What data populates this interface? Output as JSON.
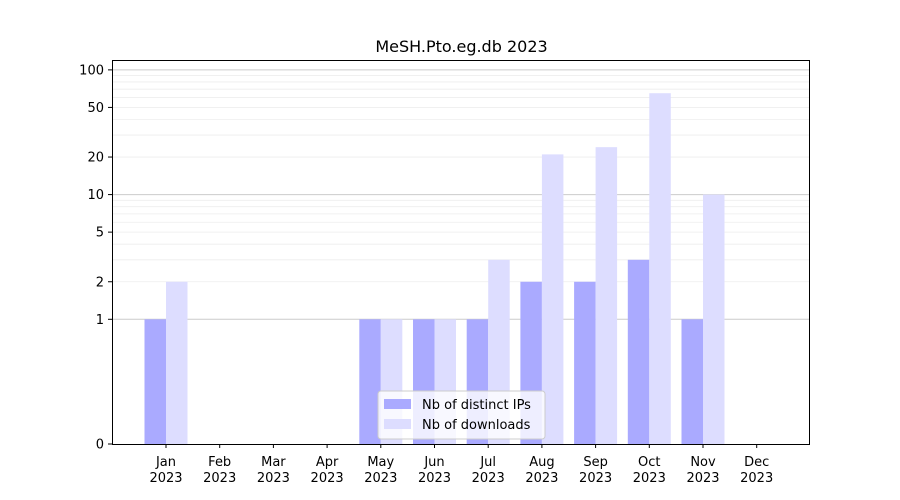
{
  "chart_data": {
    "type": "bar",
    "title": "MeSH.Pto.eg.db 2023",
    "xlabel": "",
    "ylabel": "",
    "y_scale": "symlog",
    "ylim": [
      0,
      120
    ],
    "y_ticks": [
      0,
      1,
      2,
      5,
      10,
      20,
      50,
      100
    ],
    "grid": true,
    "legend_position": "lower-center",
    "categories": [
      [
        "Jan",
        "2023"
      ],
      [
        "Feb",
        "2023"
      ],
      [
        "Mar",
        "2023"
      ],
      [
        "Apr",
        "2023"
      ],
      [
        "May",
        "2023"
      ],
      [
        "Jun",
        "2023"
      ],
      [
        "Jul",
        "2023"
      ],
      [
        "Aug",
        "2023"
      ],
      [
        "Sep",
        "2023"
      ],
      [
        "Oct",
        "2023"
      ],
      [
        "Nov",
        "2023"
      ],
      [
        "Dec",
        "2023"
      ]
    ],
    "series": [
      {
        "name": "Nb of distinct IPs",
        "color": "#aaaaff",
        "values": [
          1,
          0,
          0,
          0,
          1,
          1,
          1,
          2,
          2,
          3,
          1,
          0
        ]
      },
      {
        "name": "Nb of downloads",
        "color": "#ddddff",
        "values": [
          2,
          0,
          0,
          0,
          1,
          1,
          3,
          21,
          24,
          65,
          10,
          0
        ]
      }
    ]
  }
}
